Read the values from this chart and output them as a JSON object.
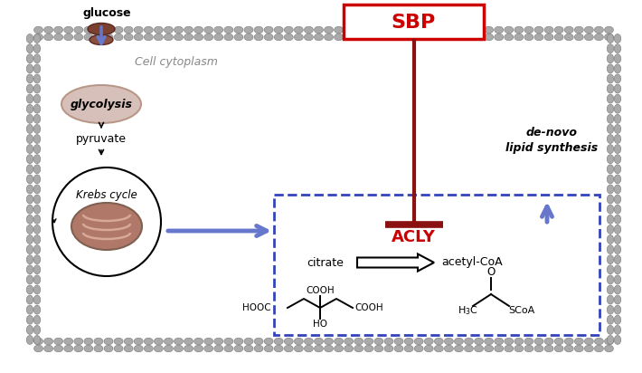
{
  "bg_color": "#ffffff",
  "sbp_box_color": "#cc0000",
  "sbp_text_color": "#cc0000",
  "sbp_text": "SBP",
  "acly_text_color": "#cc0000",
  "acly_text": "ACLY",
  "blue_color": "#6677cc",
  "dark_red_color": "#8b1010",
  "dashed_box_color": "#3344bb",
  "cell_cytoplasm_text": "Cell cytoplasm",
  "de_novo_line1": "de-novo",
  "de_novo_line2": "lipid synthesis",
  "citrate_text": "citrate",
  "acetyl_coa_text": "acetyl-CoA",
  "glucose_text": "glucose",
  "pyruvate_text": "pyruvate",
  "glycolysis_text": "glycolysis",
  "krebs_cycle_text": "Krebs cycle",
  "glycolysis_fill": "#d8c0ba",
  "mem_color": "#aaaaaa",
  "mem_edge": "#777777"
}
